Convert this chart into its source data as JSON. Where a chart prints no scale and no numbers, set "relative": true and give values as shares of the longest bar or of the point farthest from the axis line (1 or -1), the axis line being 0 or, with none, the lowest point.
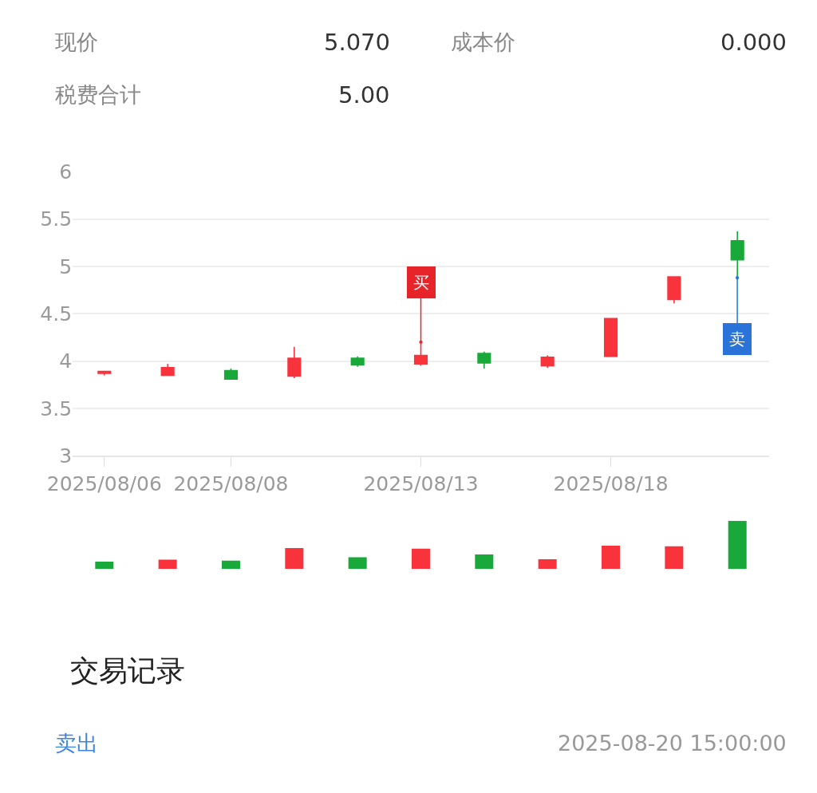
{
  "chart_data": [
    {
      "type": "candlestick",
      "categories": [
        "2025/08/06",
        null,
        "2025/08/08",
        null,
        null,
        "2025/08/13",
        null,
        null,
        "2025/08/18",
        null,
        null
      ],
      "ohlc": [
        [
          3.87,
          3.89,
          3.85,
          3.89
        ],
        [
          3.85,
          3.97,
          3.85,
          3.93
        ],
        [
          3.9,
          3.92,
          3.81,
          3.81
        ],
        [
          3.84,
          4.15,
          3.82,
          4.03
        ],
        [
          4.03,
          4.05,
          3.94,
          3.96
        ],
        [
          3.97,
          4.2,
          3.95,
          4.06
        ],
        [
          4.08,
          4.1,
          3.92,
          3.98
        ],
        [
          3.95,
          4.06,
          3.93,
          4.04
        ],
        [
          4.05,
          4.45,
          4.05,
          4.45
        ],
        [
          4.65,
          4.89,
          4.61,
          4.89
        ],
        [
          5.27,
          5.37,
          4.88,
          5.07
        ]
      ],
      "colors": [
        "#f8333c",
        "#f8333c",
        "#19a93b",
        "#f8333c",
        "#19a93b",
        "#f8333c",
        "#19a93b",
        "#f8333c",
        "#f8333c",
        "#f8333c",
        "#19a93b"
      ],
      "ylim": [
        3,
        6
      ],
      "yticks": [
        3,
        3.5,
        4,
        4.5,
        5,
        5.5,
        6
      ],
      "grid": "y",
      "annotations": [
        "现价",
        "5.070",
        "成本价",
        "0.000",
        "税费合计",
        "5.00",
        {
          "text": "买",
          "x": "2025/08/13",
          "y": 4.2
        },
        {
          "text": "卖",
          "y": 4.88
        }
      ]
    },
    {
      "type": "bar",
      "relative": true,
      "categories": [
        null,
        null,
        null,
        null,
        null,
        null,
        null,
        null,
        null,
        null,
        null
      ],
      "values": [
        0.15,
        0.19,
        0.17,
        0.43,
        0.24,
        0.42,
        0.3,
        0.2,
        0.48,
        0.47,
        1
      ],
      "colors": [
        "#19a93b",
        "#f8333c",
        "#19a93b",
        "#f8333c",
        "#19a93b",
        "#f8333c",
        "#19a93b",
        "#f8333c",
        "#f8333c",
        "#f8333c",
        "#19a93b"
      ],
      "tick_labels": false,
      "annotations": [
        "交易记录",
        "卖出",
        "2025-08-20 15:00:00"
      ]
    }
  ]
}
